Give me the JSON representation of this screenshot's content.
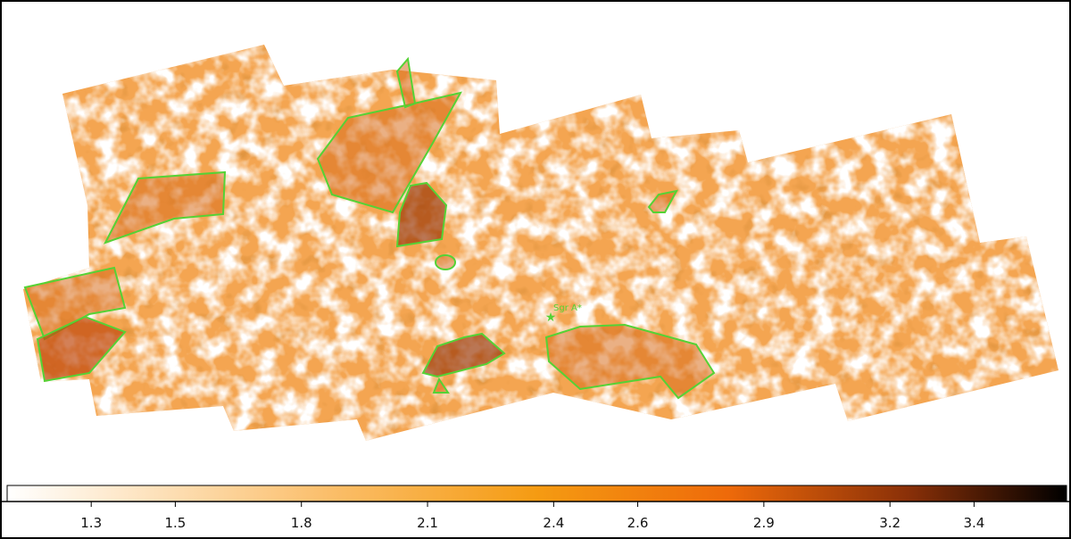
{
  "annotation": "Sgr A*",
  "colorbar": {
    "ticks": [
      1.3,
      1.5,
      1.8,
      2.1,
      2.4,
      2.6,
      2.9,
      3.2,
      3.4
    ],
    "lim": [
      1.1,
      3.62
    ]
  }
}
